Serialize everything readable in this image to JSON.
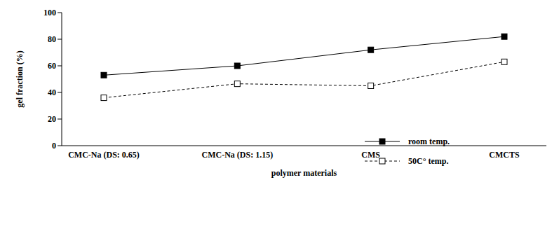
{
  "chart_data": {
    "type": "line",
    "x_label": "polymer materials",
    "y_label": "gel fraction (%)",
    "categories": [
      "CMC-Na (DS: 0.65)",
      "CMC-Na (DS: 1.15)",
      "CMS",
      "CMCTS"
    ],
    "series": [
      {
        "name": "room temp.",
        "color": "#000000",
        "marker": "filled_square",
        "line_style": "solid",
        "values": [
          53,
          60,
          72,
          82
        ]
      },
      {
        "name": "50C° temp.",
        "color": "#000000",
        "marker": "open_square",
        "line_style": "dashed",
        "values": [
          36,
          46.5,
          45,
          63
        ]
      }
    ],
    "ylim": [
      0,
      100
    ],
    "yticks": [
      0,
      20,
      40,
      60,
      80,
      100
    ],
    "grid": false,
    "legend": "lower right"
  }
}
